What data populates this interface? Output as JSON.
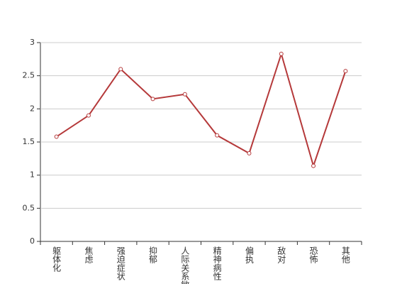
{
  "chart_data": {
    "type": "line",
    "categories": [
      "躯体化",
      "焦虑",
      "强迫症状",
      "抑郁",
      "人际关系敏感",
      "精神病性",
      "偏执",
      "敌对",
      "恐怖",
      "其他"
    ],
    "series": [
      {
        "color": "#b5393a",
        "values": [
          1.58,
          1.9,
          2.6,
          2.15,
          2.22,
          1.6,
          1.33,
          2.83,
          1.14,
          2.57
        ]
      }
    ],
    "ylim": [
      0,
      3
    ],
    "yticks": [
      0,
      {
        "value": 0.5,
        "label": "0.5"
      },
      1,
      {
        "value": 1.5,
        "label": "1.5"
      },
      2,
      {
        "value": 2.5,
        "label": "2.5"
      },
      3
    ],
    "grid": true
  }
}
